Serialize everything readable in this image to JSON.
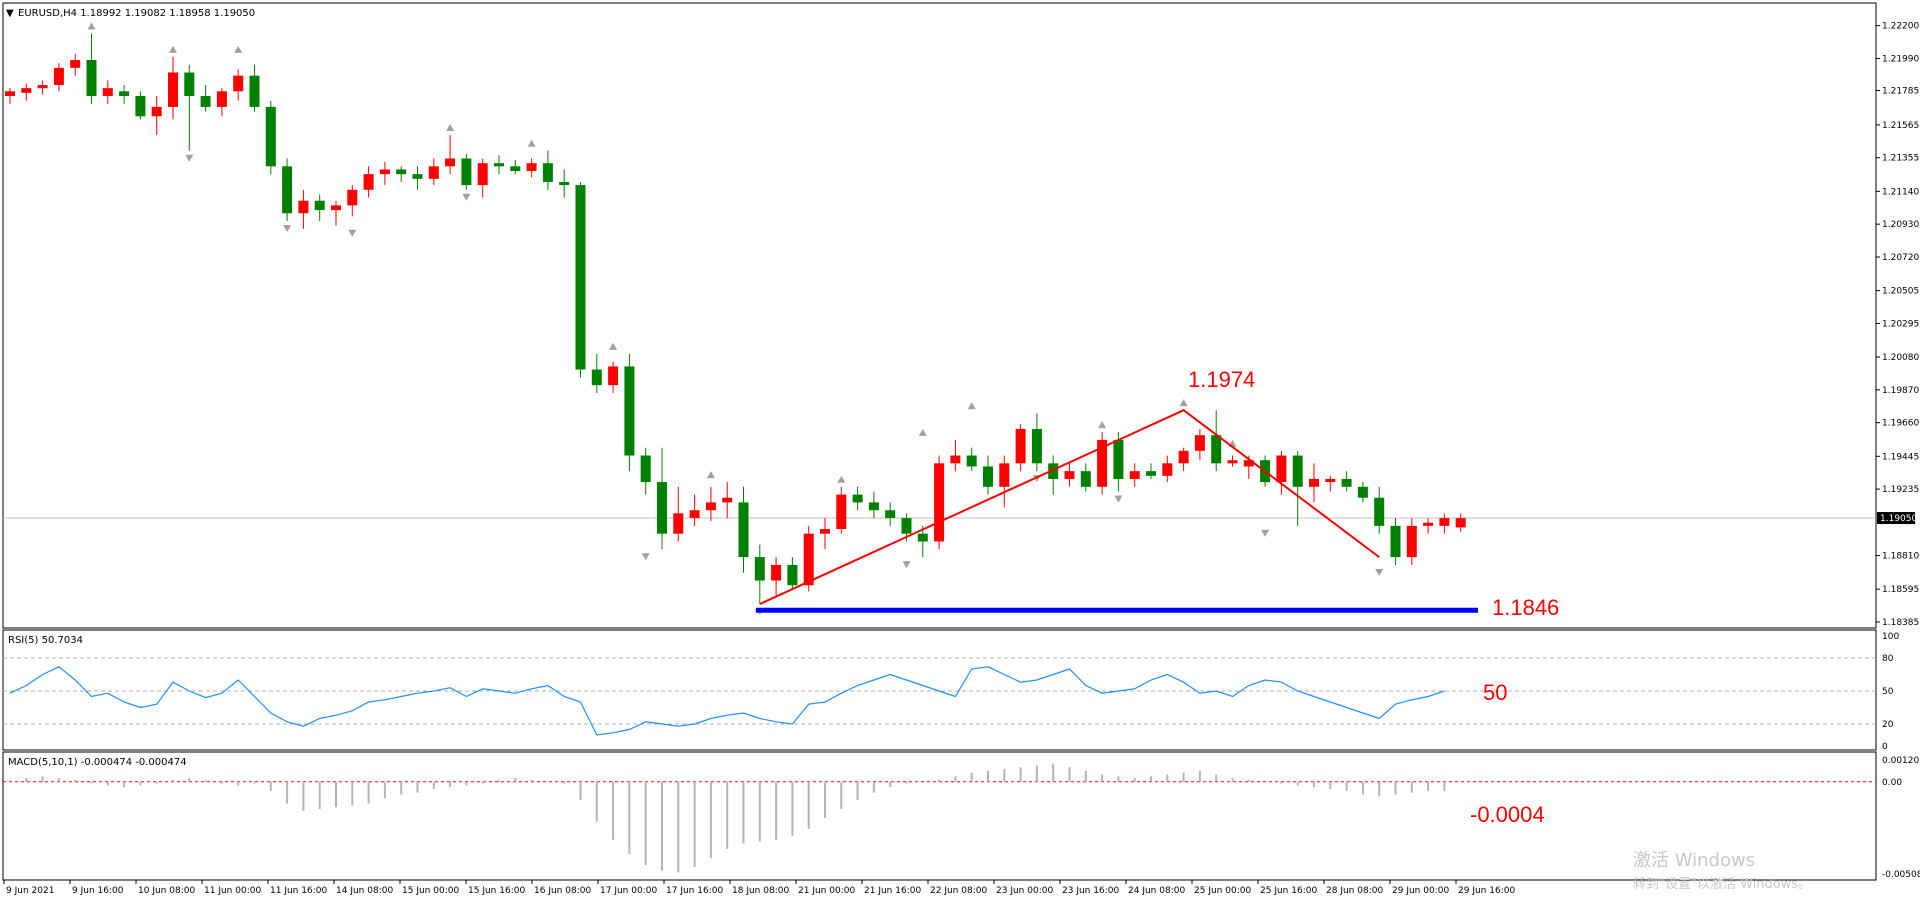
{
  "window": {
    "header": "EURUSD,H4  1.18992 1.19082 1.18958 1.19050",
    "rsi_header": "RSI(5) 50.7034",
    "macd_header": "MACD(5,10,1) -0.000474 -0.000474",
    "current_price_label": "1.19050"
  },
  "colors": {
    "bull": "#ff0000",
    "bear": "#008000",
    "rsi_line": "#1e90ff",
    "macd_hist": "#b4b4b4",
    "support_line": "#0000ff",
    "annotation": "#ff0000"
  },
  "annotations": {
    "peak_price": "1.1974",
    "support_price": "1.1846",
    "rsi_level": "50",
    "macd_level": "-0.0004"
  },
  "watermark": {
    "line1": "激活 Windows",
    "line2": "转到\"设置\"以激活 Windows。"
  },
  "chart_data": [
    {
      "type": "candlestick",
      "symbol": "EURUSD",
      "timeframe": "H4",
      "ylim": [
        1.18385,
        1.223
      ],
      "y_ticks": [
        "1.22200",
        "1.21990",
        "1.21785",
        "1.21565",
        "1.21355",
        "1.21140",
        "1.20930",
        "1.20720",
        "1.20505",
        "1.20295",
        "1.20080",
        "1.19870",
        "1.19660",
        "1.19445",
        "1.19235",
        "1.18810",
        "1.18595",
        "1.18385"
      ],
      "x_ticks": [
        "9 Jun 2021",
        "9 Jun 16:00",
        "10 Jun 08:00",
        "11 Jun 00:00",
        "11 Jun 16:00",
        "14 Jun 08:00",
        "15 Jun 00:00",
        "15 Jun 16:00",
        "16 Jun 08:00",
        "17 Jun 00:00",
        "17 Jun 16:00",
        "18 Jun 08:00",
        "21 Jun 00:00",
        "21 Jun 16:00",
        "22 Jun 08:00",
        "23 Jun 00:00",
        "23 Jun 16:00",
        "24 Jun 08:00",
        "25 Jun 00:00",
        "25 Jun 16:00",
        "28 Jun 08:00",
        "29 Jun 00:00",
        "29 Jun 16:00"
      ],
      "candles": [
        [
          1.2175,
          1.218,
          1.217,
          1.2178
        ],
        [
          1.2177,
          1.2183,
          1.2172,
          1.218
        ],
        [
          1.218,
          1.2185,
          1.2176,
          1.2182
        ],
        [
          1.2182,
          1.2196,
          1.2178,
          1.2193
        ],
        [
          1.2193,
          1.2202,
          1.2188,
          1.2198
        ],
        [
          1.2198,
          1.2215,
          1.217,
          1.2175
        ],
        [
          1.2175,
          1.2185,
          1.217,
          1.218
        ],
        [
          1.2178,
          1.2182,
          1.217,
          1.2175
        ],
        [
          1.2175,
          1.2178,
          1.216,
          1.2162
        ],
        [
          1.2162,
          1.2175,
          1.215,
          1.2168
        ],
        [
          1.2168,
          1.22,
          1.216,
          1.219
        ],
        [
          1.219,
          1.2195,
          1.214,
          1.2175
        ],
        [
          1.2175,
          1.2182,
          1.2165,
          1.2168
        ],
        [
          1.2168,
          1.218,
          1.2162,
          1.2178
        ],
        [
          1.2178,
          1.2192,
          1.2172,
          1.2188
        ],
        [
          1.2188,
          1.2195,
          1.2165,
          1.2168
        ],
        [
          1.2168,
          1.2172,
          1.2125,
          1.213
        ],
        [
          1.213,
          1.2135,
          1.2095,
          1.21
        ],
        [
          1.21,
          1.2115,
          1.209,
          1.2108
        ],
        [
          1.2108,
          1.2112,
          1.2095,
          1.2102
        ],
        [
          1.2102,
          1.2108,
          1.2092,
          1.2105
        ],
        [
          1.2105,
          1.2118,
          1.2098,
          1.2115
        ],
        [
          1.2115,
          1.213,
          1.211,
          1.2125
        ],
        [
          1.2125,
          1.2133,
          1.2118,
          1.2128
        ],
        [
          1.2128,
          1.213,
          1.212,
          1.2125
        ],
        [
          1.2125,
          1.213,
          1.2115,
          1.2122
        ],
        [
          1.2122,
          1.2135,
          1.2118,
          1.213
        ],
        [
          1.213,
          1.215,
          1.2125,
          1.2135
        ],
        [
          1.2135,
          1.2138,
          1.2115,
          1.2118
        ],
        [
          1.2118,
          1.2135,
          1.211,
          1.2132
        ],
        [
          1.2132,
          1.2137,
          1.2125,
          1.213
        ],
        [
          1.213,
          1.2134,
          1.2125,
          1.2127
        ],
        [
          1.2127,
          1.2135,
          1.2123,
          1.2132
        ],
        [
          1.2132,
          1.214,
          1.2115,
          1.212
        ],
        [
          1.212,
          1.2128,
          1.211,
          1.2118
        ],
        [
          1.2118,
          1.212,
          1.1995,
          1.2
        ],
        [
          1.2,
          1.201,
          1.1985,
          1.199
        ],
        [
          1.199,
          1.2005,
          1.1985,
          1.2002
        ],
        [
          1.2002,
          1.201,
          1.1935,
          1.1945
        ],
        [
          1.1945,
          1.195,
          1.192,
          1.1928
        ],
        [
          1.1928,
          1.195,
          1.1885,
          1.1895
        ],
        [
          1.1895,
          1.1925,
          1.189,
          1.1908
        ],
        [
          1.1905,
          1.192,
          1.19,
          1.191
        ],
        [
          1.191,
          1.1925,
          1.1903,
          1.1915
        ],
        [
          1.1915,
          1.1928,
          1.1905,
          1.1918
        ],
        [
          1.1915,
          1.1925,
          1.187,
          1.188
        ],
        [
          1.188,
          1.1888,
          1.185,
          1.1865
        ],
        [
          1.1865,
          1.188,
          1.1855,
          1.1875
        ],
        [
          1.1875,
          1.188,
          1.186,
          1.1862
        ],
        [
          1.1862,
          1.19,
          1.1858,
          1.1895
        ],
        [
          1.1895,
          1.1905,
          1.1885,
          1.1898
        ],
        [
          1.1898,
          1.1925,
          1.1895,
          1.192
        ],
        [
          1.192,
          1.1925,
          1.191,
          1.1915
        ],
        [
          1.1915,
          1.1922,
          1.1905,
          1.191
        ],
        [
          1.191,
          1.1915,
          1.19,
          1.1905
        ],
        [
          1.1905,
          1.1908,
          1.189,
          1.1895
        ],
        [
          1.1895,
          1.19,
          1.188,
          1.189
        ],
        [
          1.189,
          1.1945,
          1.1885,
          1.194
        ],
        [
          1.194,
          1.1955,
          1.1935,
          1.1945
        ],
        [
          1.1945,
          1.195,
          1.1935,
          1.1938
        ],
        [
          1.1938,
          1.1945,
          1.192,
          1.1925
        ],
        [
          1.1925,
          1.1945,
          1.1912,
          1.194
        ],
        [
          1.194,
          1.1965,
          1.1935,
          1.1962
        ],
        [
          1.1962,
          1.1972,
          1.1935,
          1.194
        ],
        [
          1.194,
          1.1945,
          1.192,
          1.193
        ],
        [
          1.193,
          1.194,
          1.1925,
          1.1935
        ],
        [
          1.1935,
          1.194,
          1.1922,
          1.1925
        ],
        [
          1.1925,
          1.196,
          1.192,
          1.1955
        ],
        [
          1.1955,
          1.196,
          1.1922,
          1.193
        ],
        [
          1.193,
          1.194,
          1.1925,
          1.1935
        ],
        [
          1.1935,
          1.194,
          1.193,
          1.1932
        ],
        [
          1.1932,
          1.1945,
          1.1928,
          1.194
        ],
        [
          1.194,
          1.195,
          1.1935,
          1.1948
        ],
        [
          1.1948,
          1.1962,
          1.1942,
          1.1958
        ],
        [
          1.1958,
          1.1974,
          1.1935,
          1.194
        ],
        [
          1.194,
          1.1945,
          1.1938,
          1.1942
        ],
        [
          1.1938,
          1.1945,
          1.193,
          1.1942
        ],
        [
          1.1942,
          1.1945,
          1.1925,
          1.1928
        ],
        [
          1.1928,
          1.1948,
          1.192,
          1.1945
        ],
        [
          1.1945,
          1.1948,
          1.19,
          1.1925
        ],
        [
          1.1925,
          1.194,
          1.1915,
          1.193
        ],
        [
          1.1928,
          1.1932,
          1.1922,
          1.193
        ],
        [
          1.193,
          1.1935,
          1.1922,
          1.1925
        ],
        [
          1.1925,
          1.1928,
          1.1915,
          1.1918
        ],
        [
          1.1918,
          1.1925,
          1.1895,
          1.19
        ],
        [
          1.19,
          1.1905,
          1.1875,
          1.188
        ],
        [
          1.188,
          1.1905,
          1.1875,
          1.19
        ],
        [
          1.19,
          1.1905,
          1.1895,
          1.1902
        ],
        [
          1.19,
          1.1908,
          1.1895,
          1.1905
        ],
        [
          1.1899,
          1.1908,
          1.1896,
          1.1905
        ]
      ],
      "fractals_up": [
        [
          5,
          1.2215
        ],
        [
          10,
          1.22
        ],
        [
          14,
          1.22
        ],
        [
          27,
          1.215
        ],
        [
          32,
          1.214
        ],
        [
          37,
          1.201
        ],
        [
          43,
          1.1928
        ],
        [
          51,
          1.1925
        ],
        [
          56,
          1.1955
        ],
        [
          59,
          1.1972
        ],
        [
          67,
          1.196
        ],
        [
          72,
          1.1974
        ],
        [
          75,
          1.1948
        ]
      ],
      "fractals_down": [
        [
          11,
          1.214
        ],
        [
          17,
          1.2095
        ],
        [
          21,
          1.2092
        ],
        [
          28,
          1.2115
        ],
        [
          39,
          1.1885
        ],
        [
          46,
          1.185
        ],
        [
          55,
          1.188
        ],
        [
          63,
          1.1935
        ],
        [
          68,
          1.1922
        ],
        [
          77,
          1.19
        ],
        [
          84,
          1.1875
        ]
      ],
      "zigzag": [
        [
          46,
          1.185
        ],
        [
          72,
          1.1974
        ],
        [
          84,
          1.188
        ]
      ],
      "support_level": 1.1846,
      "current_price": 1.1905
    },
    {
      "type": "line",
      "name": "RSI(5)",
      "ylim": [
        0,
        100
      ],
      "y_ticks": [
        "100",
        "80",
        "50",
        "20",
        "0"
      ],
      "levels": [
        80,
        50,
        20
      ],
      "values": [
        48,
        55,
        65,
        72,
        60,
        45,
        48,
        40,
        35,
        38,
        58,
        50,
        44,
        48,
        60,
        45,
        30,
        22,
        18,
        25,
        28,
        32,
        40,
        42,
        45,
        48,
        50,
        53,
        45,
        52,
        50,
        48,
        52,
        55,
        45,
        40,
        10,
        12,
        15,
        22,
        20,
        18,
        20,
        25,
        28,
        30,
        25,
        22,
        20,
        38,
        40,
        48,
        55,
        60,
        65,
        60,
        55,
        50,
        45,
        70,
        72,
        65,
        58,
        60,
        65,
        70,
        55,
        48,
        50,
        52,
        60,
        65,
        58,
        48,
        50,
        45,
        55,
        60,
        58,
        50,
        45,
        40,
        35,
        30,
        25,
        38,
        42,
        45,
        50
      ],
      "current": 50.7034
    },
    {
      "type": "bar",
      "name": "MACD(5,10,1)",
      "ylim": [
        -0.005088,
        0.001201
      ],
      "y_ticks": [
        "0.001201",
        "0.00",
        "-0.005088"
      ],
      "values": [
        0.0001,
        0.0002,
        0.0003,
        0.0002,
        0.0001,
        -0.0001,
        -0.0002,
        -0.0003,
        -0.0002,
        -0.0001,
        0.0001,
        0.0002,
        0.0001,
        -0.0001,
        -0.0002,
        -0.0001,
        -0.0005,
        -0.0012,
        -0.0016,
        -0.0015,
        -0.0014,
        -0.0013,
        -0.0012,
        -0.0009,
        -0.0007,
        -0.0006,
        -0.0004,
        -0.0003,
        -0.0002,
        -0.0001,
        0.0001,
        0.0002,
        0.0001,
        0.0,
        -0.0001,
        -0.001,
        -0.0022,
        -0.0032,
        -0.004,
        -0.0046,
        -0.0049,
        -0.005,
        -0.0047,
        -0.0042,
        -0.0037,
        -0.0034,
        -0.0033,
        -0.0032,
        -0.003,
        -0.0026,
        -0.002,
        -0.0015,
        -0.001,
        -0.0006,
        -0.0003,
        -0.0001,
        0.0,
        0.0001,
        0.0003,
        0.0005,
        0.0006,
        0.0007,
        0.0008,
        0.0009,
        0.001,
        0.0008,
        0.0006,
        0.0004,
        0.0003,
        0.0002,
        0.0003,
        0.0004,
        0.0005,
        0.0006,
        0.0004,
        0.0002,
        0.0001,
        0.0,
        -0.0001,
        -0.0002,
        -0.0003,
        -0.0004,
        -0.0005,
        -0.0007,
        -0.0008,
        -0.0007,
        -0.0006,
        -0.0005,
        -0.0005
      ],
      "current": -0.000474
    }
  ]
}
